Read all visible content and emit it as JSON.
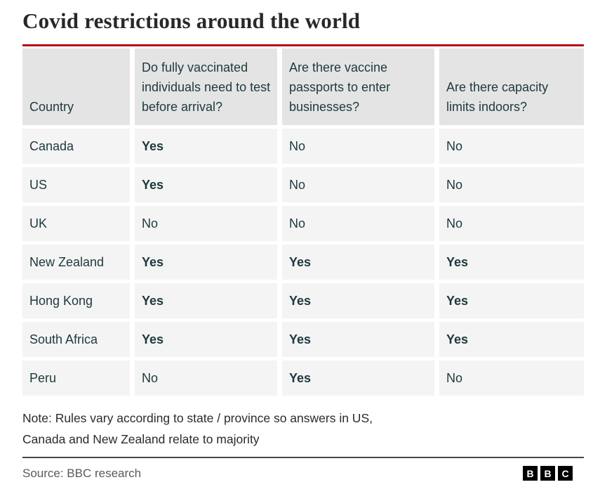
{
  "title": "Covid restrictions around the world",
  "colors": {
    "accent_red": "#b00610",
    "header_bg": "#e4e4e4",
    "row_bg": "#f4f4f4",
    "table_text": "#1d393e",
    "logo_bg": "#000000"
  },
  "chart_data": {
    "type": "table",
    "title": "Covid restrictions around the world",
    "columns": [
      "Country",
      "Do fully vaccinated individuals need to test before arrival?",
      "Are there vaccine passports to enter businesses?",
      "Are there capacity limits indoors?"
    ],
    "rows": [
      {
        "country": "Canada",
        "values": [
          {
            "text": "Yes",
            "bold": true
          },
          {
            "text": "No",
            "bold": false
          },
          {
            "text": "No",
            "bold": false
          }
        ]
      },
      {
        "country": "US",
        "values": [
          {
            "text": "Yes",
            "bold": true
          },
          {
            "text": "No",
            "bold": false
          },
          {
            "text": "No",
            "bold": false
          }
        ]
      },
      {
        "country": "UK",
        "values": [
          {
            "text": "No",
            "bold": false
          },
          {
            "text": "No",
            "bold": false
          },
          {
            "text": "No",
            "bold": false
          }
        ]
      },
      {
        "country": "New Zealand",
        "values": [
          {
            "text": "Yes",
            "bold": true
          },
          {
            "text": "Yes",
            "bold": true
          },
          {
            "text": "Yes",
            "bold": true
          }
        ]
      },
      {
        "country": "Hong Kong",
        "values": [
          {
            "text": "Yes",
            "bold": true
          },
          {
            "text": "Yes",
            "bold": true
          },
          {
            "text": "Yes",
            "bold": true
          }
        ]
      },
      {
        "country": "South Africa",
        "values": [
          {
            "text": "Yes",
            "bold": true
          },
          {
            "text": "Yes",
            "bold": true
          },
          {
            "text": "Yes",
            "bold": true
          }
        ]
      },
      {
        "country": "Peru",
        "values": [
          {
            "text": "No",
            "bold": false
          },
          {
            "text": "Yes",
            "bold": true
          },
          {
            "text": "No",
            "bold": false
          }
        ]
      }
    ]
  },
  "note": {
    "lines": [
      "Note: Rules vary according to state / province so answers in US,",
      "Canada and New Zealand relate to majority"
    ]
  },
  "footer": {
    "source": "Source: BBC research",
    "logo_blocks": [
      "B",
      "B",
      "C"
    ]
  }
}
